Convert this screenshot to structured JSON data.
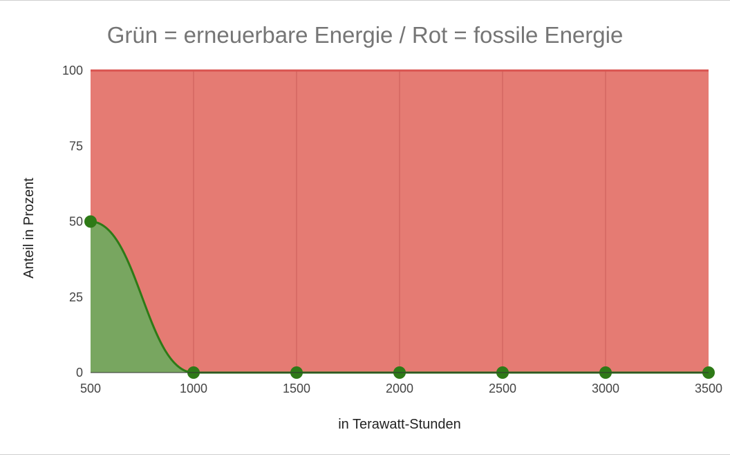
{
  "chart_data": {
    "type": "area",
    "title": "Grün = erneuerbare Energie / Rot = fossile Energie",
    "xlabel": "in Terawatt-Stunden",
    "ylabel": "Anteil in Prozent",
    "x": [
      500,
      1000,
      1500,
      2000,
      2500,
      3000,
      3500
    ],
    "xlim": [
      500,
      3500
    ],
    "ylim": [
      0,
      100
    ],
    "x_ticks": [
      "500",
      "1000",
      "1500",
      "2000",
      "2500",
      "3000",
      "3500"
    ],
    "y_ticks": [
      "0",
      "25",
      "50",
      "75",
      "100"
    ],
    "series": [
      {
        "values": [
          50,
          0,
          0,
          0,
          0,
          0,
          0
        ],
        "color": "#2e7a17",
        "fill": "#78a660",
        "markers": true
      },
      {
        "values": [
          100,
          100,
          100,
          100,
          100,
          100,
          100
        ],
        "color": "#d9534f",
        "fill": "#e57b73",
        "markers": false
      }
    ],
    "grid": {
      "vertical": true,
      "horizontal": false
    },
    "legend": "none"
  }
}
